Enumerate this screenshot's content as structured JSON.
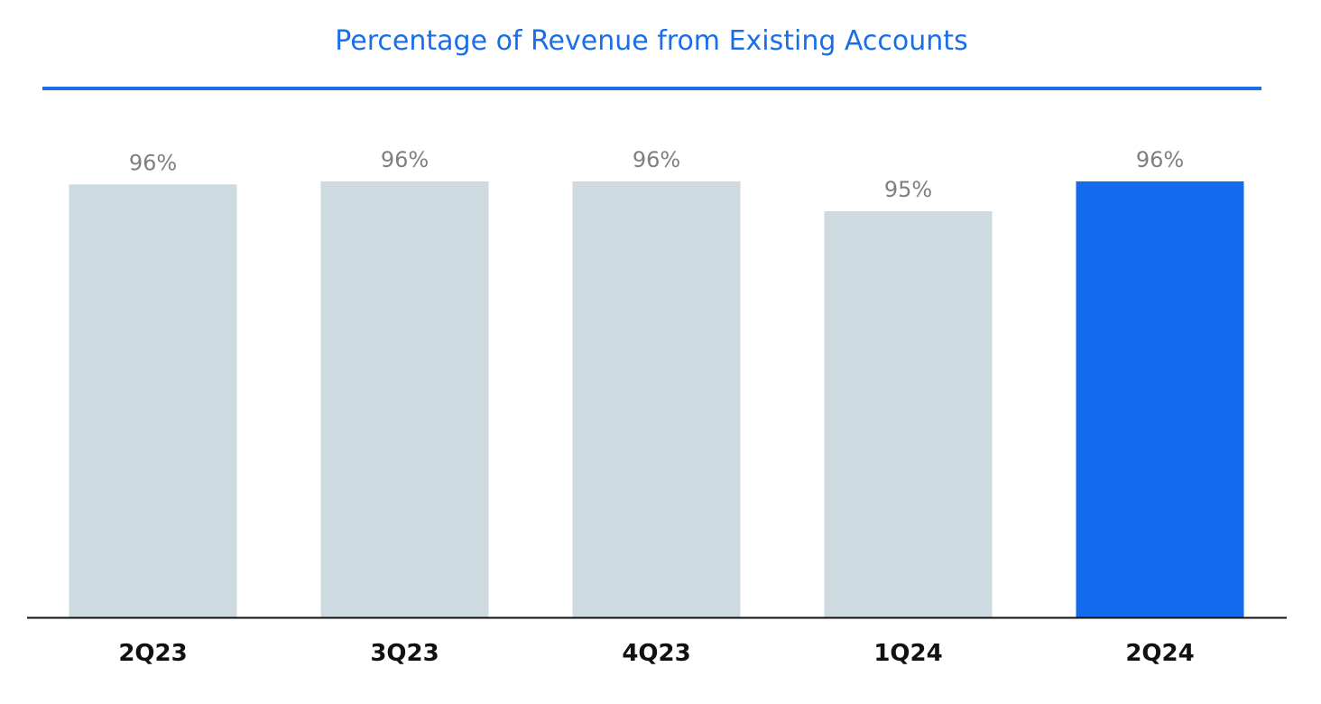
{
  "chart_data": {
    "type": "bar",
    "title": "Percentage of Revenue from Existing Accounts",
    "categories": [
      "2Q23",
      "3Q23",
      "4Q23",
      "1Q24",
      "2Q24"
    ],
    "values": [
      95.9,
      96.0,
      96.0,
      95.0,
      96.0
    ],
    "value_labels": [
      "96%",
      "96%",
      "96%",
      "95%",
      "96%"
    ],
    "xlabel": "",
    "ylabel": "",
    "grid": false,
    "colors": {
      "title": "#1a6ee8",
      "default_bar": "#cddae0",
      "highlight_bar": "#136aec",
      "value_label": "#7f7f7f",
      "axis": "#111111"
    },
    "highlight_index": 4
  }
}
